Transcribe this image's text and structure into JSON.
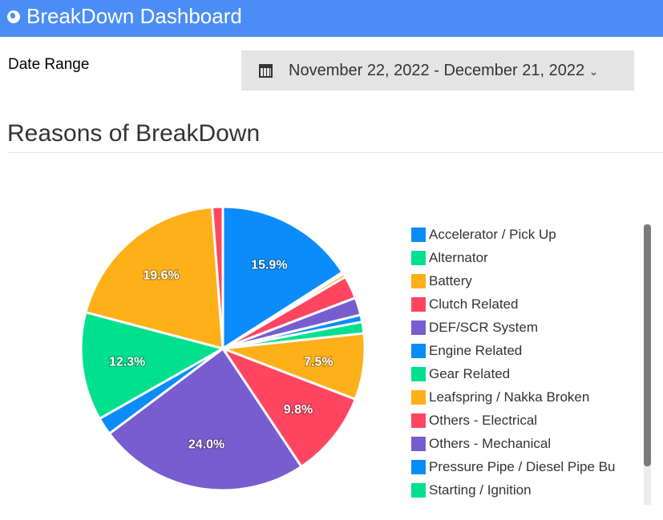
{
  "header": {
    "title": "BreakDown Dashboard",
    "icon": "globe-icon"
  },
  "date_range": {
    "label": "Date Range",
    "value": "November 22, 2022 - December 21, 2022",
    "icon": "calendar-icon"
  },
  "section_title": "Reasons of BreakDown",
  "chart_data": {
    "type": "pie",
    "title": "Reasons of BreakDown",
    "legend_position": "right",
    "slices": [
      {
        "label": "Accelerator / Pick Up",
        "value": 15.9,
        "color": "#0a8cfa",
        "data_label": "15.9%"
      },
      {
        "label": "Alternator",
        "value": 0.2,
        "color": "#00e08f"
      },
      {
        "label": "Battery",
        "value": 0.4,
        "color": "#feb019"
      },
      {
        "label": "Clutch Related",
        "value": 2.6,
        "color": "#ff4560"
      },
      {
        "label": "DEF/SCR System",
        "value": 2.0,
        "color": "#775dd0"
      },
      {
        "label": "Engine Related",
        "value": 0.8,
        "color": "#0a8cfa"
      },
      {
        "label": "Gear Related",
        "value": 1.3,
        "color": "#00e08f"
      },
      {
        "label": "Leafspring / Nakka Broken",
        "value": 7.5,
        "color": "#feb019",
        "data_label": "7.5%"
      },
      {
        "label": "Others - Electrical",
        "value": 9.8,
        "color": "#ff4560",
        "data_label": "9.8%"
      },
      {
        "label": "Others - Mechanical",
        "value": 24.0,
        "color": "#775dd0",
        "data_label": "24.0%"
      },
      {
        "label": "Pressure Pipe / Diesel Pipe Bu",
        "value": 2.0,
        "color": "#0a8cfa"
      },
      {
        "label": "Starting / Ignition",
        "value": 12.3,
        "color": "#00e08f",
        "data_label": "12.3%"
      },
      {
        "label": "",
        "value": 19.6,
        "color": "#feb019",
        "data_label": "19.6%"
      },
      {
        "label": "",
        "value": 1.2,
        "color": "#ff4560"
      }
    ]
  }
}
